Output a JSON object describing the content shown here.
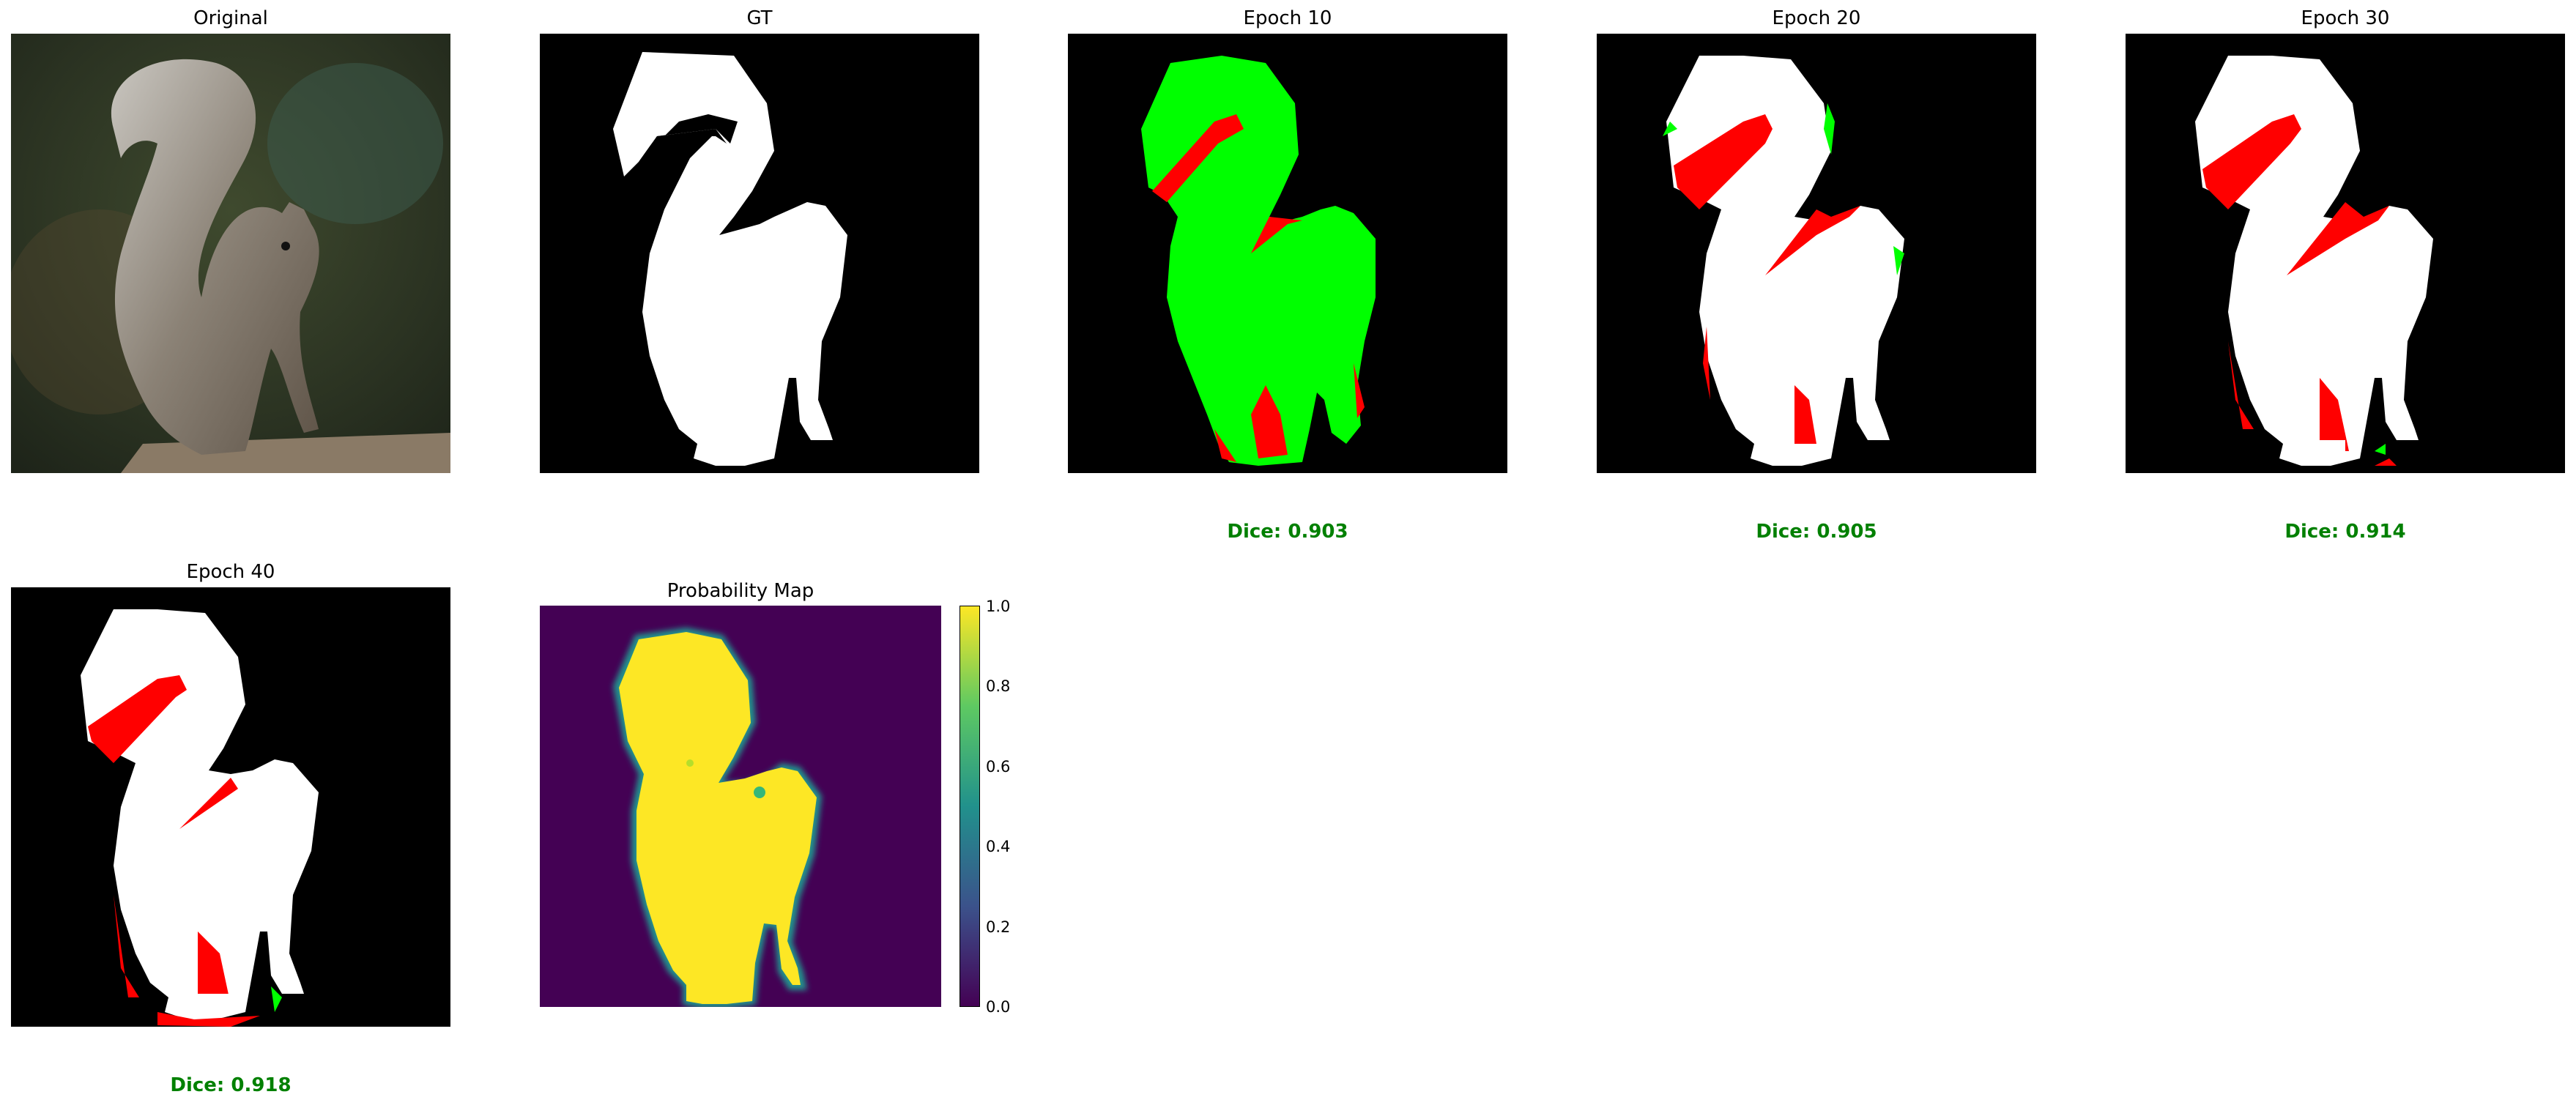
{
  "panels": {
    "original": {
      "title": "Original"
    },
    "gt": {
      "title": "GT"
    },
    "epoch10": {
      "title": "Epoch 10",
      "dice": "Dice: 0.903"
    },
    "epoch20": {
      "title": "Epoch 20",
      "dice": "Dice: 0.905"
    },
    "epoch30": {
      "title": "Epoch 30",
      "dice": "Dice: 0.914"
    },
    "epoch40": {
      "title": "Epoch 40",
      "dice": "Dice: 0.918"
    },
    "probability_map": {
      "title": "Probability Map"
    }
  },
  "colorbar": {
    "ticks": [
      "0.0",
      "0.2",
      "0.4",
      "0.6",
      "0.8",
      "1.0"
    ],
    "colormap": [
      "#440154",
      "#3b528b",
      "#21918c",
      "#5ec962",
      "#fde725"
    ]
  },
  "colors": {
    "mask_foreground": "#ffffff",
    "mask_background": "#000000",
    "false_negative": "#ff0000",
    "false_positive": "#00ff00",
    "dice_text": "#008000"
  }
}
